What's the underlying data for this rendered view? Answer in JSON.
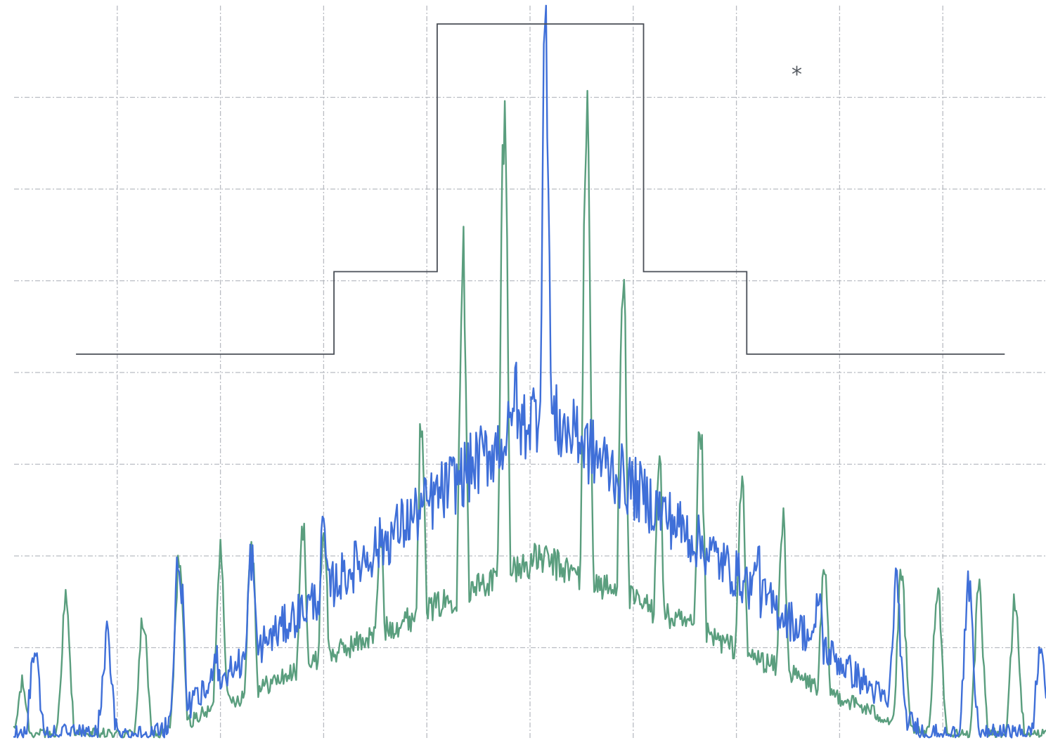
{
  "chart_data": {
    "type": "line",
    "title": "",
    "xlabel": "",
    "ylabel": "",
    "xlim": [
      0,
      10
    ],
    "ylim": [
      0,
      8
    ],
    "grid": true,
    "annotation": "*",
    "mask": {
      "name": "",
      "x": [
        0.6,
        3.1,
        3.1,
        4.1,
        4.1,
        6.1,
        6.1,
        7.1,
        7.1,
        9.6
      ],
      "y": [
        4.2,
        4.2,
        5.1,
        5.1,
        7.8,
        7.8,
        5.1,
        5.1,
        4.2,
        4.2
      ]
    },
    "series": [
      {
        "name": "",
        "color": "#5a9e7e",
        "peaks": [
          [
            0.08,
            0.6
          ],
          [
            0.5,
            1.5
          ],
          [
            1.25,
            1.3
          ],
          [
            1.6,
            2.0
          ],
          [
            2.0,
            2.1
          ],
          [
            2.3,
            2.2
          ],
          [
            2.8,
            2.3
          ],
          [
            3.0,
            2.3
          ],
          [
            3.55,
            2.2
          ],
          [
            3.95,
            3.5
          ],
          [
            4.35,
            5.3
          ],
          [
            4.75,
            6.8
          ],
          [
            5.55,
            6.8
          ],
          [
            5.9,
            5.1
          ],
          [
            6.25,
            3.1
          ],
          [
            6.65,
            3.4
          ],
          [
            7.05,
            2.8
          ],
          [
            7.45,
            2.4
          ],
          [
            7.85,
            1.8
          ],
          [
            8.6,
            1.8
          ],
          [
            8.95,
            1.7
          ],
          [
            9.35,
            1.6
          ],
          [
            9.7,
            1.5
          ]
        ]
      },
      {
        "name": "",
        "color": "#3f6fd8",
        "peaks": [
          [
            0.2,
            1.0
          ],
          [
            0.9,
            1.1
          ],
          [
            1.6,
            2.0
          ],
          [
            1.95,
            1.0
          ],
          [
            2.3,
            2.0
          ],
          [
            3.0,
            2.3
          ],
          [
            3.35,
            1.7
          ],
          [
            3.75,
            1.4
          ],
          [
            4.15,
            1.9
          ],
          [
            4.45,
            2.7
          ],
          [
            4.85,
            4.0
          ],
          [
            5.15,
            7.9
          ],
          [
            5.45,
            3.6
          ],
          [
            5.7,
            2.9
          ],
          [
            6.05,
            2.4
          ],
          [
            6.45,
            1.8
          ],
          [
            6.85,
            1.4
          ],
          [
            7.2,
            2.1
          ],
          [
            7.8,
            1.6
          ],
          [
            8.55,
            1.7
          ],
          [
            9.25,
            1.6
          ],
          [
            9.95,
            1.0
          ]
        ]
      }
    ]
  }
}
